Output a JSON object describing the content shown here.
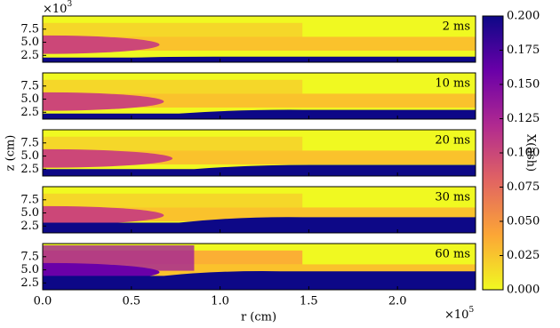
{
  "chart_data": {
    "type": "heatmap",
    "xlabel": "r  (cm)",
    "ylabel": "z  (cm)",
    "x_offset_base": "×10",
    "x_offset_exp": "5",
    "y_offset_base": "×10",
    "y_offset_exp": "3",
    "panels": [
      "2 ms",
      "10 ms",
      "20 ms",
      "30 ms",
      "60 ms"
    ],
    "xlim": [
      0,
      2.44
    ],
    "xticks": [
      {
        "value": 0,
        "label": "0.0"
      },
      0.5,
      {
        "value": 1,
        "label": "1.0"
      },
      1.5,
      {
        "value": 2,
        "label": "2.0"
      }
    ],
    "ylim": [
      1.2,
      10
    ],
    "yticks": [
      2.5,
      {
        "value": 5,
        "label": "5.0"
      },
      7.5
    ],
    "colorbar": {
      "label": "X(ash)",
      "lim": [
        0,
        0.2
      ],
      "ticks": [
        {
          "value": 0,
          "label": "0.000"
        },
        {
          "value": 0.025,
          "label": "0.025"
        },
        {
          "value": 0.05,
          "label": "0.050"
        },
        {
          "value": 0.075,
          "label": "0.075"
        },
        {
          "value": 0.1,
          "label": "0.100"
        },
        {
          "value": 0.125,
          "label": "0.125"
        },
        {
          "value": 0.15,
          "label": "0.150"
        },
        {
          "value": 0.175,
          "label": "0.175"
        },
        {
          "value": 0.2,
          "label": "0.200"
        }
      ]
    }
  }
}
